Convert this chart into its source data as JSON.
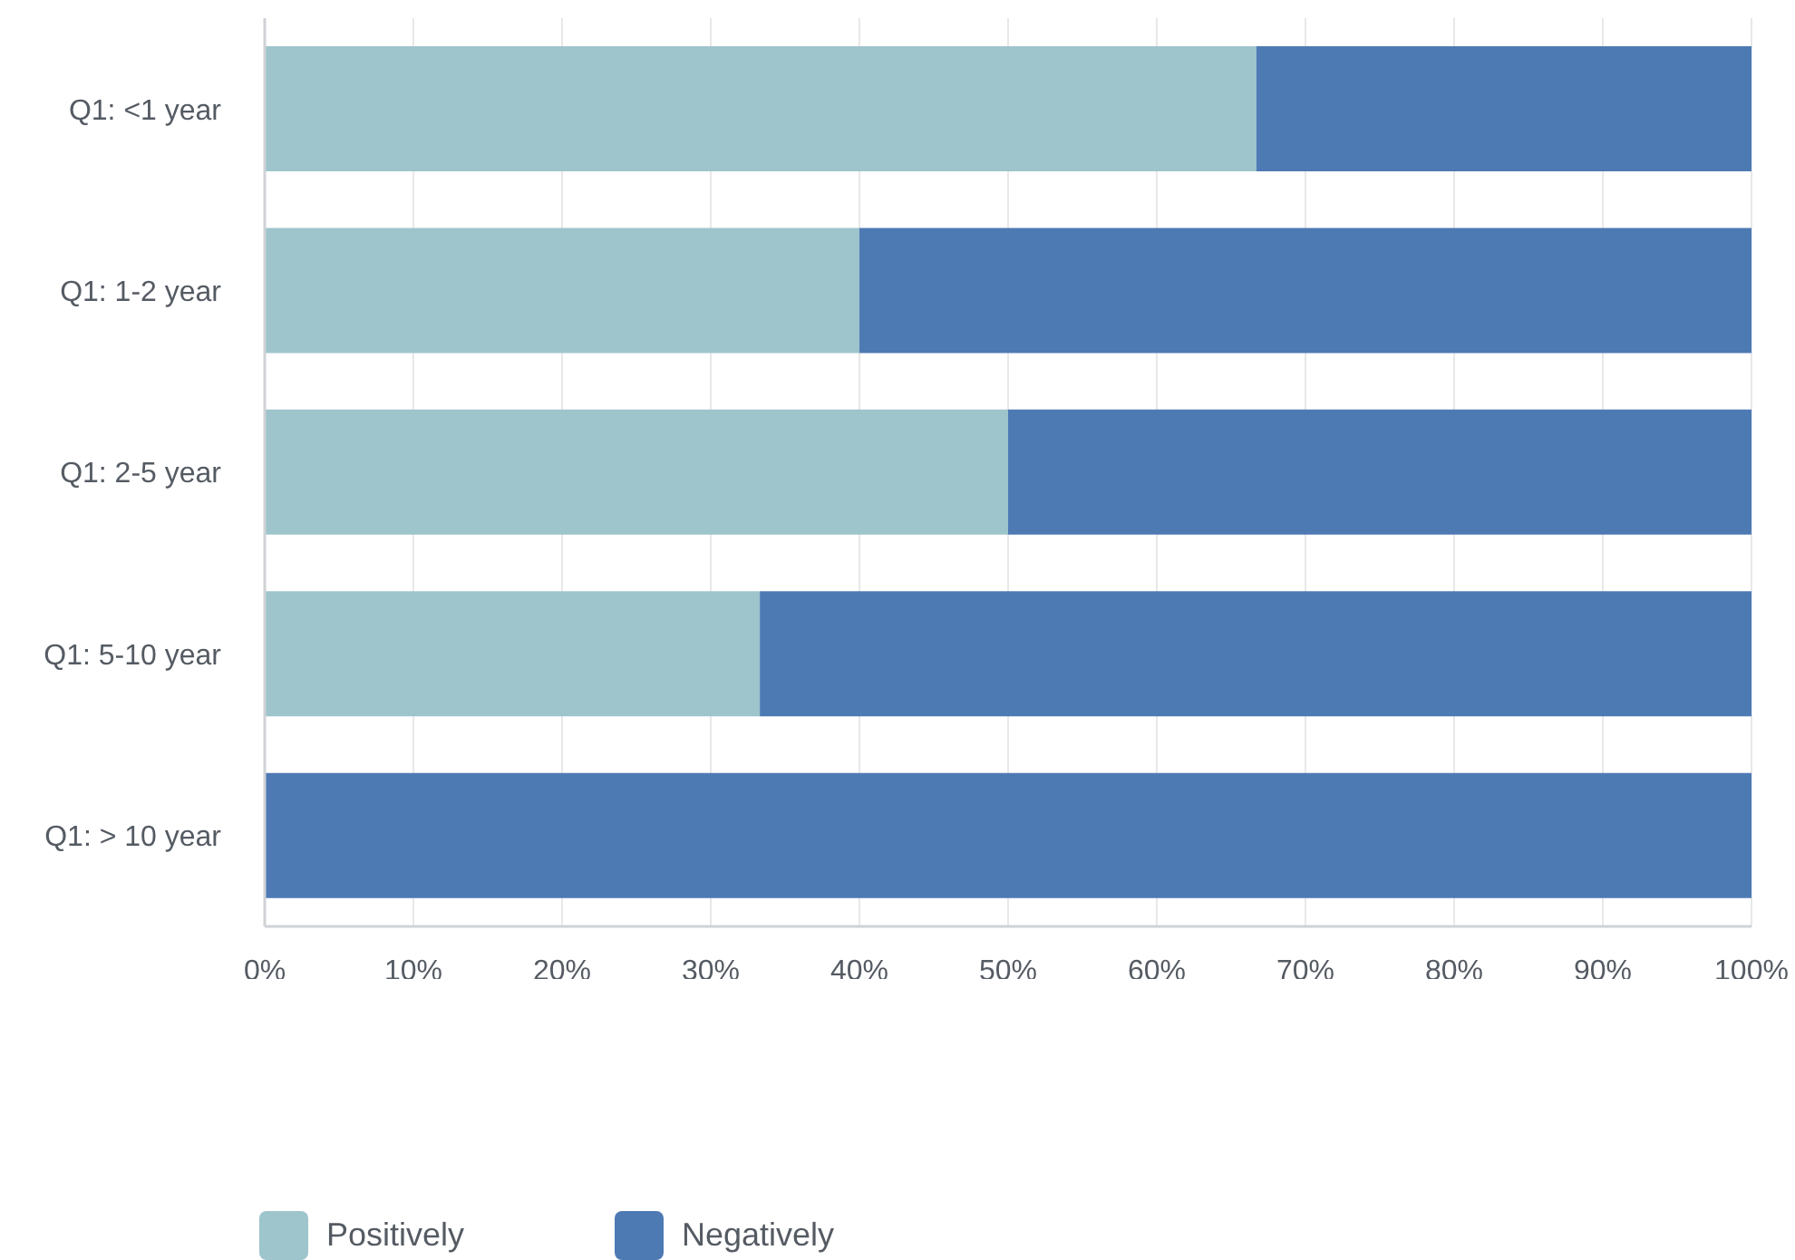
{
  "chart_data": {
    "type": "bar",
    "orientation": "horizontal",
    "stacked": true,
    "categories": [
      "Q1: <1 year",
      "Q1: 1-2 year",
      "Q1: 2-5 year",
      "Q1: 5-10 year",
      "Q1: > 10 year"
    ],
    "series": [
      {
        "name": "Positively",
        "color": "#9ec4cc",
        "values": [
          66.7,
          40,
          50,
          33.3,
          0
        ]
      },
      {
        "name": "Negatively",
        "color": "#4e7ab4",
        "values": [
          33.3,
          60,
          50,
          66.7,
          100
        ]
      }
    ],
    "xlim": [
      0,
      100
    ],
    "xticks": [
      {
        "value": 0,
        "label": "0%"
      },
      {
        "value": 10,
        "label": "10%"
      },
      {
        "value": 20,
        "label": "20%"
      },
      {
        "value": 30,
        "label": "30%"
      },
      {
        "value": 40,
        "label": "40%"
      },
      {
        "value": 50,
        "label": "50%"
      },
      {
        "value": 60,
        "label": "60%"
      },
      {
        "value": 70,
        "label": "70%"
      },
      {
        "value": 80,
        "label": "80%"
      },
      {
        "value": 90,
        "label": "90%"
      },
      {
        "value": 100,
        "label": "100%"
      }
    ],
    "grid": "x",
    "legend": "bottom left"
  }
}
